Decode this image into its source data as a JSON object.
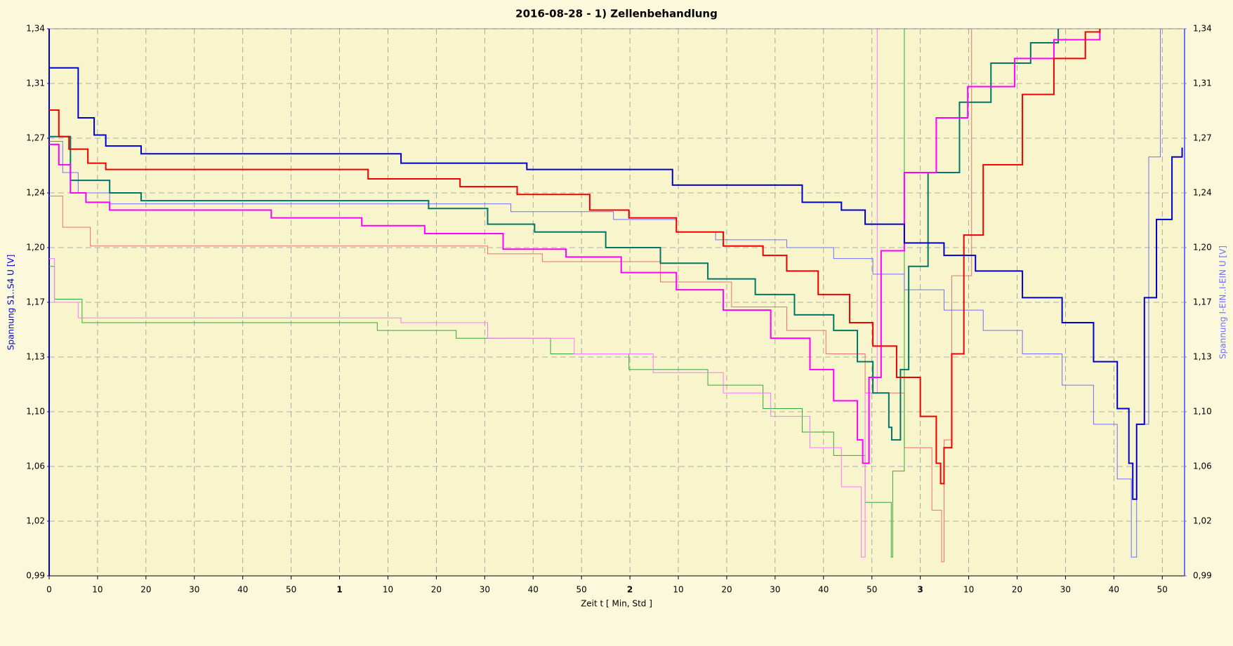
{
  "chart_data": {
    "type": "line",
    "step": true,
    "title": "2016-08-28 - 1) Zellenbehandlung",
    "xlabel": "Zeit  t  [ Min, Std ]",
    "ylabel": "Spannung S1..S4  U  [V]",
    "y2label": "Spannung I-EIN..I-EIN  U  [V]",
    "xlim": [
      0,
      234.6
    ],
    "xticks": [
      0,
      10,
      20,
      30,
      40,
      50,
      {
        "value": 60,
        "label": "1"
      },
      {
        "value": 70,
        "label": "10"
      },
      {
        "value": 80,
        "label": "20"
      },
      {
        "value": 90,
        "label": "30"
      },
      {
        "value": 100,
        "label": "40"
      },
      {
        "value": 110,
        "label": "50"
      },
      {
        "value": 120,
        "label": "2"
      },
      {
        "value": 130,
        "label": "10"
      },
      {
        "value": 140,
        "label": "20"
      },
      {
        "value": 150,
        "label": "30"
      },
      {
        "value": 160,
        "label": "40"
      },
      {
        "value": 170,
        "label": "50"
      },
      {
        "value": 180,
        "label": "3"
      },
      {
        "value": 190,
        "label": "10"
      },
      {
        "value": 200,
        "label": "20"
      },
      {
        "value": 210,
        "label": "30"
      },
      {
        "value": 220,
        "label": "40"
      },
      {
        "value": 230,
        "label": "50"
      }
    ],
    "ylim": [
      0.99,
      1.34
    ],
    "yticks": [
      {
        "value": 0.99,
        "label": "0,99"
      },
      {
        "value": 1.025,
        "label": "1,02"
      },
      {
        "value": 1.06,
        "label": "1,06"
      },
      {
        "value": 1.095,
        "label": "1,10"
      },
      {
        "value": 1.13,
        "label": "1,13"
      },
      {
        "value": 1.165,
        "label": "1,17"
      },
      {
        "value": 1.2,
        "label": "1,20"
      },
      {
        "value": 1.235,
        "label": "1,24"
      },
      {
        "value": 1.27,
        "label": "1,27"
      },
      {
        "value": 1.305,
        "label": "1,31"
      },
      {
        "value": 1.34,
        "label": "1,34"
      }
    ],
    "y2lim": [
      0.99,
      1.34
    ],
    "y2ticks": [
      {
        "value": 0.99,
        "label": "0,99"
      },
      {
        "value": 1.025,
        "label": "1,02"
      },
      {
        "value": 1.06,
        "label": "1,06"
      },
      {
        "value": 1.095,
        "label": "1,10"
      },
      {
        "value": 1.13,
        "label": "1,13"
      },
      {
        "value": 1.165,
        "label": "1,17"
      },
      {
        "value": 1.2,
        "label": "1,20"
      },
      {
        "value": 1.235,
        "label": "1,24"
      },
      {
        "value": 1.27,
        "label": "1,27"
      },
      {
        "value": 1.305,
        "label": "1,31"
      },
      {
        "value": 1.34,
        "label": "1,34"
      }
    ],
    "grid": true,
    "series": [
      {
        "color": "#f07070",
        "width": 1,
        "x": [
          0,
          2.8,
          8.5,
          90.6,
          101.9,
          126.3,
          141.0,
          152.4,
          160.5,
          168.6,
          176.7,
          182.4,
          184.4,
          184.9,
          186.5,
          190.6
        ],
        "values": [
          1.233,
          1.213,
          1.201,
          1.196,
          1.191,
          1.178,
          1.162,
          1.147,
          1.132,
          1.107,
          1.072,
          1.032,
          0.999,
          1.077,
          1.182,
          1.34
        ]
      },
      {
        "color": "#33aa33",
        "width": 1,
        "x": [
          0,
          1.1,
          6.8,
          67.8,
          84.1,
          103.6,
          119.8,
          136.1,
          147.5,
          155.6,
          162.1,
          168.6,
          174.0,
          174.3,
          176.7
        ],
        "values": [
          1.188,
          1.167,
          1.152,
          1.147,
          1.142,
          1.132,
          1.122,
          1.112,
          1.097,
          1.082,
          1.067,
          1.037,
          1.002,
          1.057,
          1.34
        ]
      },
      {
        "color": "#ff77ff",
        "width": 1,
        "x": [
          0,
          1.1,
          6.0,
          72.7,
          90.6,
          108.5,
          124.8,
          139.3,
          149.1,
          157.2,
          163.7,
          167.8,
          168.6,
          171.1
        ],
        "values": [
          1.193,
          1.165,
          1.155,
          1.152,
          1.142,
          1.132,
          1.12,
          1.107,
          1.092,
          1.072,
          1.047,
          1.002,
          1.107,
          1.34
        ]
      },
      {
        "color": "#6f6fff",
        "width": 1,
        "axis": "y2",
        "x": [
          0,
          2.8,
          6.0,
          12.5,
          95.4,
          116.6,
          129.6,
          137.7,
          152.4,
          162.1,
          170.2,
          176.7,
          184.9,
          193.0,
          201.1,
          209.3,
          215.8,
          220.7,
          223.6,
          224.7,
          227.2,
          229.6
        ],
        "values": [
          1.268,
          1.248,
          1.235,
          1.228,
          1.223,
          1.218,
          1.21,
          1.205,
          1.2,
          1.193,
          1.183,
          1.173,
          1.16,
          1.147,
          1.132,
          1.112,
          1.087,
          1.052,
          1.002,
          1.087,
          1.258,
          1.34
        ]
      },
      {
        "color": "#007766",
        "width": 2,
        "x": [
          0,
          4.4,
          12.5,
          19.0,
          78.4,
          90.6,
          100.3,
          115.0,
          126.3,
          136.1,
          145.9,
          154.0,
          162.1,
          167.0,
          170.2,
          173.5,
          174.1,
          175.9,
          177.6,
          181.6,
          188.1,
          194.6,
          202.8,
          208.5
        ],
        "values": [
          1.271,
          1.243,
          1.235,
          1.23,
          1.225,
          1.215,
          1.21,
          1.2,
          1.19,
          1.18,
          1.17,
          1.157,
          1.147,
          1.127,
          1.107,
          1.085,
          1.077,
          1.122,
          1.188,
          1.248,
          1.293,
          1.318,
          1.331,
          1.34
        ]
      },
      {
        "color": "#ff00ff",
        "width": 2,
        "x": [
          0,
          2.0,
          4.4,
          7.6,
          12.5,
          45.9,
          64.6,
          77.6,
          93.8,
          106.8,
          118.2,
          129.6,
          139.3,
          149.1,
          157.2,
          162.1,
          167.0,
          168.1,
          169.4,
          171.9,
          176.7,
          183.3,
          189.8,
          199.5,
          207.6,
          217.1
        ],
        "values": [
          1.266,
          1.253,
          1.235,
          1.229,
          1.224,
          1.219,
          1.214,
          1.209,
          1.199,
          1.194,
          1.184,
          1.173,
          1.16,
          1.142,
          1.122,
          1.102,
          1.077,
          1.062,
          1.117,
          1.198,
          1.248,
          1.283,
          1.303,
          1.321,
          1.333,
          1.34
        ]
      },
      {
        "color": "#ee0000",
        "width": 2,
        "x": [
          0,
          2.0,
          4.1,
          8.0,
          11.7,
          65.9,
          84.9,
          96.7,
          111.7,
          119.8,
          129.6,
          139.3,
          147.5,
          152.4,
          158.9,
          165.4,
          170.2,
          175.1,
          180.0,
          183.3,
          184.2,
          184.9,
          186.5,
          189.0,
          193.0,
          201.1,
          207.6,
          214.1,
          217.1
        ],
        "values": [
          1.288,
          1.271,
          1.263,
          1.254,
          1.25,
          1.244,
          1.239,
          1.234,
          1.224,
          1.219,
          1.21,
          1.201,
          1.195,
          1.185,
          1.17,
          1.152,
          1.137,
          1.117,
          1.092,
          1.062,
          1.049,
          1.072,
          1.132,
          1.208,
          1.253,
          1.298,
          1.321,
          1.338,
          1.34
        ]
      },
      {
        "color": "#0000cc",
        "width": 2,
        "x": [
          0,
          6.0,
          9.3,
          11.7,
          19.0,
          72.7,
          98.7,
          128.8,
          155.6,
          163.7,
          168.6,
          176.7,
          184.9,
          191.4,
          201.1,
          209.3,
          215.8,
          220.7,
          223.1,
          223.9,
          224.7,
          226.3,
          228.8,
          232.0,
          234.1
        ],
        "values": [
          1.315,
          1.283,
          1.272,
          1.265,
          1.26,
          1.254,
          1.25,
          1.24,
          1.229,
          1.224,
          1.215,
          1.203,
          1.195,
          1.185,
          1.168,
          1.152,
          1.127,
          1.097,
          1.062,
          1.039,
          1.087,
          1.168,
          1.218,
          1.258,
          1.264
        ]
      }
    ]
  }
}
